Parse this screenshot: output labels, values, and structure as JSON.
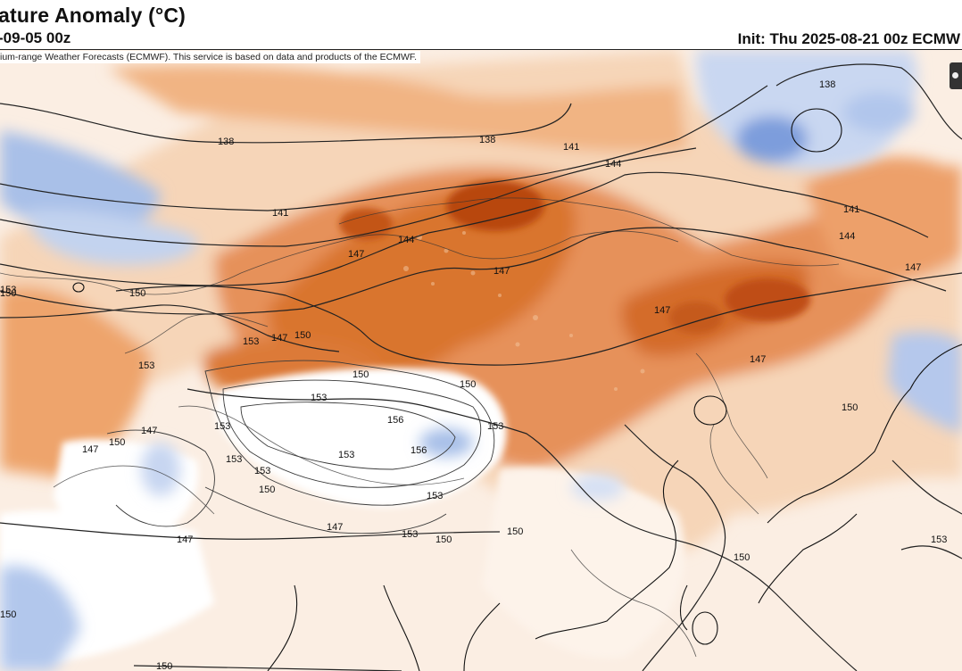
{
  "header": {
    "title": "ature Anomaly (°C)",
    "valid_time": "-09-05 00z",
    "init_time": "Init: Thu 2025-08-21 00z ECMW"
  },
  "credit": "ium-range Weather Forecasts (ECMWF). This service is based on data and products of the ECMWF.",
  "colors": {
    "warm_light": "#f6d5b8",
    "warm_mid": "#eb9d62",
    "warm_strong": "#d2692a",
    "warm_peak": "#b2400e",
    "cool_light": "#d6e2f5",
    "cool_mid": "#98b6e3",
    "cool_strong": "#5a82d0",
    "contour": "#222222",
    "terrain_contour": "#444444"
  },
  "contour_labels": [
    "138",
    "138",
    "138",
    "141",
    "141",
    "141",
    "144",
    "144",
    "144",
    "147",
    "147",
    "147",
    "147",
    "147",
    "147",
    "147",
    "147",
    "147",
    "147",
    "150",
    "150",
    "150",
    "150",
    "150",
    "150",
    "150",
    "150",
    "150",
    "150",
    "150",
    "150",
    "150",
    "153",
    "153",
    "153",
    "153",
    "153",
    "153",
    "153",
    "153",
    "153",
    "153",
    "153",
    "153",
    "156",
    "156"
  ],
  "icons": {
    "map_control": "dot-handle"
  }
}
